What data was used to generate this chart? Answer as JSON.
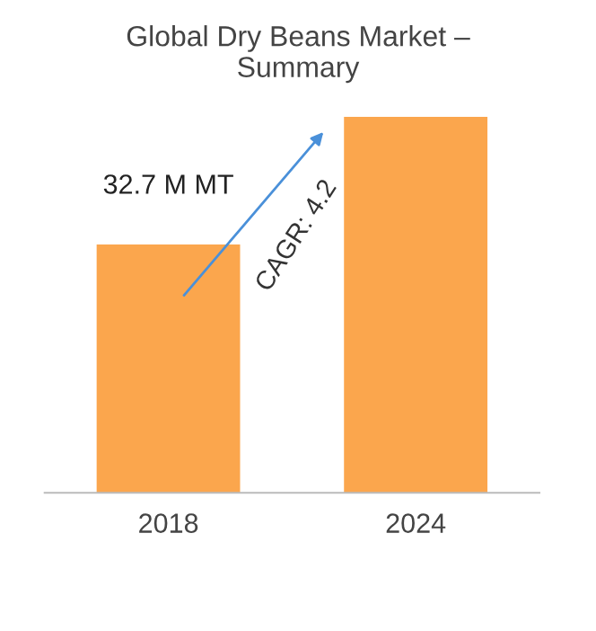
{
  "chart_data": {
    "type": "bar",
    "title": "Global Dry Beans Market –\nSummary",
    "categories": [
      "2018",
      "2024"
    ],
    "values": [
      32.7,
      49.5
    ],
    "color": "#fba64d",
    "value_labels": [
      "32.7 M MT",
      null
    ],
    "annotations": [
      "CAGR: 4.2"
    ]
  }
}
